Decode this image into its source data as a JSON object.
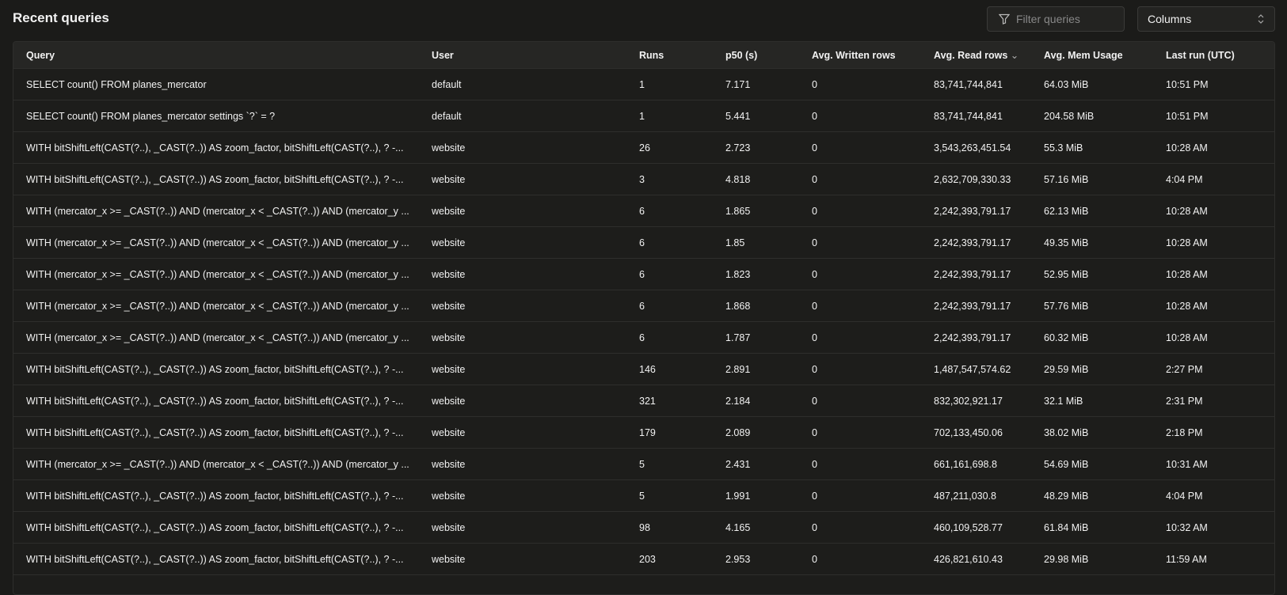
{
  "title": "Recent queries",
  "filter": {
    "placeholder": "Filter queries",
    "icon": "filter-icon"
  },
  "columns_button": {
    "label": "Columns",
    "icon": "chevron-up-down-icon"
  },
  "table": {
    "headers": [
      "Query",
      "User",
      "Runs",
      "p50 (s)",
      "Avg. Written rows",
      "Avg. Read rows",
      "Avg. Mem Usage",
      "Last run (UTC)"
    ],
    "sorted_column": "Avg. Read rows",
    "sort_direction": "descending",
    "rows": [
      [
        "SELECT count() FROM planes_mercator",
        "default",
        "1",
        "7.171",
        "0",
        "83,741,744,841",
        "64.03 MiB",
        "10:51 PM"
      ],
      [
        "SELECT count() FROM planes_mercator settings `?` = ?",
        "default",
        "1",
        "5.441",
        "0",
        "83,741,744,841",
        "204.58 MiB",
        "10:51 PM"
      ],
      [
        "WITH bitShiftLeft(CAST(?..), _CAST(?..)) AS zoom_factor, bitShiftLeft(CAST(?..), ? -...",
        "website",
        "26",
        "2.723",
        "0",
        "3,543,263,451.54",
        "55.3 MiB",
        "10:28 AM"
      ],
      [
        "WITH bitShiftLeft(CAST(?..), _CAST(?..)) AS zoom_factor, bitShiftLeft(CAST(?..), ? -...",
        "website",
        "3",
        "4.818",
        "0",
        "2,632,709,330.33",
        "57.16 MiB",
        "4:04 PM"
      ],
      [
        "WITH (mercator_x >= _CAST(?..)) AND (mercator_x < _CAST(?..)) AND (mercator_y ...",
        "website",
        "6",
        "1.865",
        "0",
        "2,242,393,791.17",
        "62.13 MiB",
        "10:28 AM"
      ],
      [
        "WITH (mercator_x >= _CAST(?..)) AND (mercator_x < _CAST(?..)) AND (mercator_y ...",
        "website",
        "6",
        "1.85",
        "0",
        "2,242,393,791.17",
        "49.35 MiB",
        "10:28 AM"
      ],
      [
        "WITH (mercator_x >= _CAST(?..)) AND (mercator_x < _CAST(?..)) AND (mercator_y ...",
        "website",
        "6",
        "1.823",
        "0",
        "2,242,393,791.17",
        "52.95 MiB",
        "10:28 AM"
      ],
      [
        "WITH (mercator_x >= _CAST(?..)) AND (mercator_x < _CAST(?..)) AND (mercator_y ...",
        "website",
        "6",
        "1.868",
        "0",
        "2,242,393,791.17",
        "57.76 MiB",
        "10:28 AM"
      ],
      [
        "WITH (mercator_x >= _CAST(?..)) AND (mercator_x < _CAST(?..)) AND (mercator_y ...",
        "website",
        "6",
        "1.787",
        "0",
        "2,242,393,791.17",
        "60.32 MiB",
        "10:28 AM"
      ],
      [
        "WITH bitShiftLeft(CAST(?..), _CAST(?..)) AS zoom_factor, bitShiftLeft(CAST(?..), ? -...",
        "website",
        "146",
        "2.891",
        "0",
        "1,487,547,574.62",
        "29.59 MiB",
        "2:27 PM"
      ],
      [
        "WITH bitShiftLeft(CAST(?..), _CAST(?..)) AS zoom_factor, bitShiftLeft(CAST(?..), ? -...",
        "website",
        "321",
        "2.184",
        "0",
        "832,302,921.17",
        "32.1 MiB",
        "2:31 PM"
      ],
      [
        "WITH bitShiftLeft(CAST(?..), _CAST(?..)) AS zoom_factor, bitShiftLeft(CAST(?..), ? -...",
        "website",
        "179",
        "2.089",
        "0",
        "702,133,450.06",
        "38.02 MiB",
        "2:18 PM"
      ],
      [
        "WITH (mercator_x >= _CAST(?..)) AND (mercator_x < _CAST(?..)) AND (mercator_y ...",
        "website",
        "5",
        "2.431",
        "0",
        "661,161,698.8",
        "54.69 MiB",
        "10:31 AM"
      ],
      [
        "WITH bitShiftLeft(CAST(?..), _CAST(?..)) AS zoom_factor, bitShiftLeft(CAST(?..), ? -...",
        "website",
        "5",
        "1.991",
        "0",
        "487,211,030.8",
        "48.29 MiB",
        "4:04 PM"
      ],
      [
        "WITH bitShiftLeft(CAST(?..), _CAST(?..)) AS zoom_factor, bitShiftLeft(CAST(?..), ? -...",
        "website",
        "98",
        "4.165",
        "0",
        "460,109,528.77",
        "61.84 MiB",
        "10:32 AM"
      ],
      [
        "WITH bitShiftLeft(CAST(?..), _CAST(?..)) AS zoom_factor, bitShiftLeft(CAST(?..), ? -...",
        "website",
        "203",
        "2.953",
        "0",
        "426,821,610.43",
        "29.98 MiB",
        "11:59 AM"
      ]
    ]
  }
}
